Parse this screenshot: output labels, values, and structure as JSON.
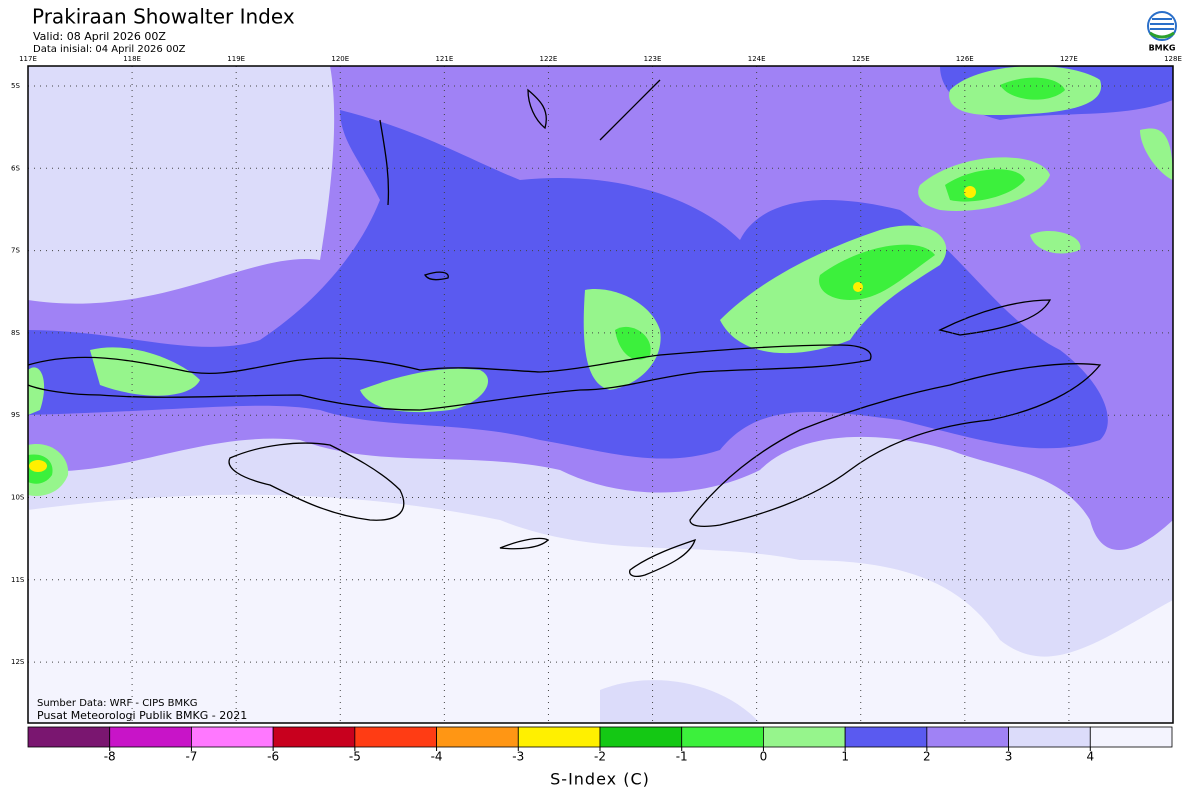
{
  "header": {
    "title": "Prakiraan Showalter Index",
    "valid": "Valid: 08 April 2026 00Z",
    "init": "Data inisial: 04 April 2026 00Z",
    "logo_text": "BMKG"
  },
  "map": {
    "lon_labels": [
      "117E",
      "118E",
      "119E",
      "120E",
      "121E",
      "122E",
      "123E",
      "124E",
      "125E",
      "126E",
      "127E",
      "128E"
    ],
    "lat_labels": [
      "5S",
      "6S",
      "7S",
      "8S",
      "9S",
      "10S",
      "11S",
      "12S"
    ],
    "source": "Sumber Data: WRF - CIPS BMKG",
    "credit": "Pusat Meteorologi Publik BMKG - 2021"
  },
  "colorbar": {
    "ticks": [
      -8,
      -7,
      -6,
      -5,
      -4,
      -3,
      -2,
      -1,
      0,
      1,
      2,
      3,
      4
    ],
    "colors": [
      "#7a1670",
      "#c814c8",
      "#ff78ff",
      "#c8001e",
      "#ff3c14",
      "#ff9614",
      "#fff000",
      "#14c814",
      "#3cf03c",
      "#96f58c",
      "#5a5af0",
      "#a082f5",
      "#dcdcfa",
      "#f4f4fe"
    ],
    "label": "S-Index (C)"
  }
}
